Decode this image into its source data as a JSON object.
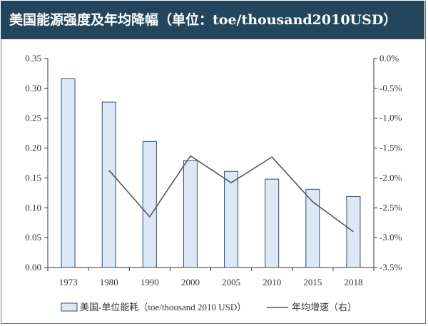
{
  "title": "美国能源强度及年均降幅（单位：toe/thousand2010USD）",
  "colors": {
    "title_bg": "#24465c",
    "bar_fill": "#dce8f5",
    "bar_stroke": "#2f4f6f",
    "line": "#555555"
  },
  "chart_data": {
    "type": "bar",
    "categories": [
      "1973",
      "1980",
      "1990",
      "2000",
      "2005",
      "2010",
      "2015",
      "2018"
    ],
    "series": [
      {
        "name": "美国-单位能耗（toe/thousand 2010 USD）",
        "type": "bar",
        "axis": "left",
        "values": [
          0.316,
          0.277,
          0.211,
          0.179,
          0.161,
          0.148,
          0.131,
          0.119
        ]
      },
      {
        "name": "年均增速（右）",
        "type": "line",
        "axis": "right",
        "values": [
          null,
          -1.87,
          -2.65,
          -1.63,
          -2.08,
          -1.65,
          -2.4,
          -2.9
        ]
      }
    ],
    "y_left": {
      "ylim": [
        0,
        0.35
      ],
      "ticks": [
        0.0,
        0.05,
        0.1,
        0.15,
        0.2,
        0.25,
        0.3,
        0.35
      ],
      "tick_labels": [
        "0.00",
        "0.05",
        "0.10",
        "0.15",
        "0.20",
        "0.25",
        "0.30",
        "0.35"
      ]
    },
    "y_right": {
      "ylim": [
        -3.5,
        0
      ],
      "ticks": [
        0,
        -0.5,
        -1,
        -1.5,
        -2,
        -2.5,
        -3,
        -3.5
      ],
      "tick_labels": [
        "0.0%",
        "-0.5%",
        "-1.0%",
        "-1.5%",
        "-2.0%",
        "-2.5%",
        "-3.0%",
        "-3.5%"
      ]
    },
    "grid": false,
    "legend_position": "bottom"
  }
}
